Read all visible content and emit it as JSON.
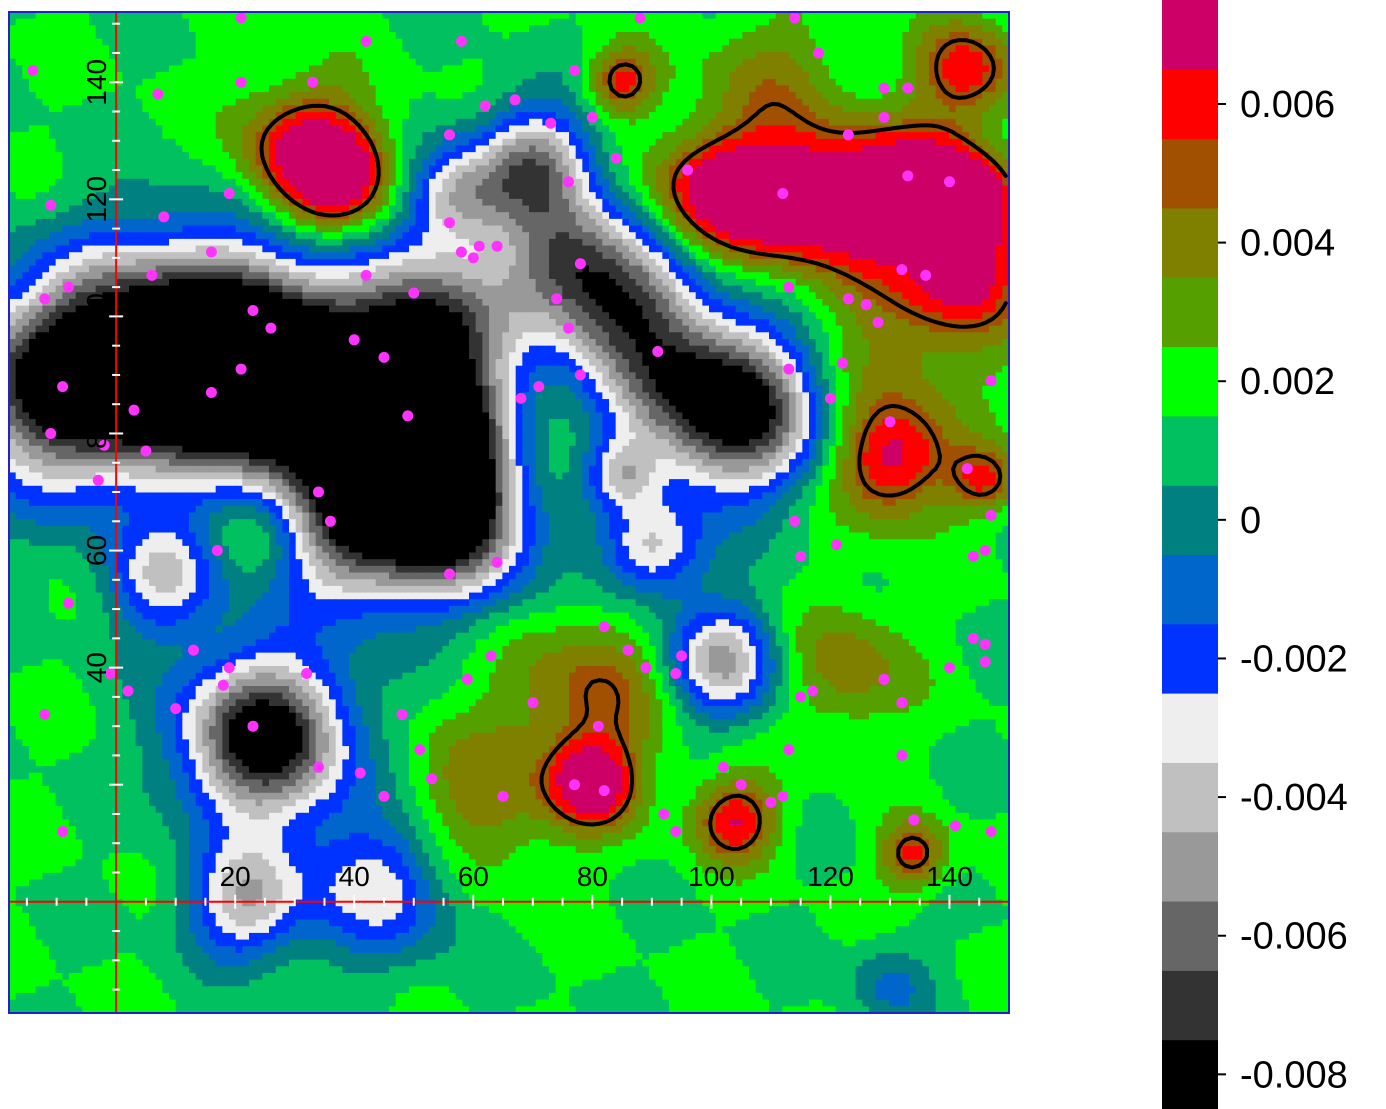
{
  "chart_data": {
    "type": "heatmap",
    "title": "",
    "xlabel": "",
    "ylabel": "",
    "xlim": [
      -18,
      150
    ],
    "ylim": [
      -19,
      152
    ],
    "x_ticks": [
      "20",
      "40",
      "60",
      "80",
      "100",
      "120",
      "140"
    ],
    "y_ticks": [
      "40",
      "60",
      "80",
      "100",
      "120",
      "140"
    ],
    "grid": false,
    "colorbar": {
      "levels": [
        {
          "value": -0.008,
          "color": "#000000"
        },
        {
          "value": -0.007,
          "color": "#333333"
        },
        {
          "value": -0.006,
          "color": "#666666"
        },
        {
          "value": -0.005,
          "color": "#999999"
        },
        {
          "value": -0.004,
          "color": "#c0c0c0"
        },
        {
          "value": -0.003,
          "color": "#eeeeee"
        },
        {
          "value": -0.002,
          "color": "#0033ff"
        },
        {
          "value": -0.001,
          "color": "#0066cc"
        },
        {
          "value": 0.0,
          "color": "#008080"
        },
        {
          "value": 0.001,
          "color": "#00c060"
        },
        {
          "value": 0.002,
          "color": "#00ff00"
        },
        {
          "value": 0.003,
          "color": "#55a000"
        },
        {
          "value": 0.004,
          "color": "#808000"
        },
        {
          "value": 0.005,
          "color": "#a05000"
        },
        {
          "value": 0.006,
          "color": "#ff0000"
        },
        {
          "value": 0.007,
          "color": "#cc0066"
        }
      ],
      "tick_labels": [
        "-0.008",
        "-0.006",
        "-0.004",
        "-0.002",
        "0",
        "0.002",
        "0.004",
        "0.006"
      ]
    },
    "contour_level": 0.005,
    "lows": [
      {
        "x": 25,
        "y": 28,
        "strength": 1.0,
        "r": 10
      },
      {
        "x": 27,
        "y": 90,
        "strength": 0.95,
        "r": 11
      },
      {
        "x": 15,
        "y": 96,
        "strength": 0.55,
        "r": 13
      },
      {
        "x": -10,
        "y": 88,
        "strength": 0.8,
        "r": 12
      },
      {
        "x": 5,
        "y": 92,
        "strength": 0.6,
        "r": 13
      },
      {
        "x": 43,
        "y": 81,
        "strength": 0.6,
        "r": 14
      },
      {
        "x": 53,
        "y": 78,
        "strength": 0.85,
        "r": 9
      },
      {
        "x": 53,
        "y": 98,
        "strength": 0.75,
        "r": 9
      },
      {
        "x": 40,
        "y": 62,
        "strength": 0.6,
        "r": 9
      },
      {
        "x": 58,
        "y": 64,
        "strength": 0.7,
        "r": 9
      },
      {
        "x": 57,
        "y": 120,
        "strength": 0.5,
        "r": 6
      },
      {
        "x": 70,
        "y": 126,
        "strength": 0.65,
        "r": 7
      },
      {
        "x": 75,
        "y": 110,
        "strength": 0.6,
        "r": 8
      },
      {
        "x": 85,
        "y": 103,
        "strength": 0.55,
        "r": 8
      },
      {
        "x": 92,
        "y": 90,
        "strength": 0.45,
        "r": 10
      },
      {
        "x": 105,
        "y": 84,
        "strength": 0.9,
        "r": 10
      },
      {
        "x": 90,
        "y": 60,
        "strength": 0.5,
        "r": 6
      },
      {
        "x": 102,
        "y": 41,
        "strength": 0.6,
        "r": 7
      },
      {
        "x": 22,
        "y": 0,
        "strength": 0.55,
        "r": 7
      },
      {
        "x": 45,
        "y": 3,
        "strength": 0.45,
        "r": 9
      },
      {
        "x": 85,
        "y": 73,
        "strength": 0.35,
        "r": 4
      },
      {
        "x": 8,
        "y": 55,
        "strength": 0.45,
        "r": 7
      },
      {
        "x": 130,
        "y": -14,
        "strength": 0.2,
        "r": 5
      }
    ],
    "highs": [
      {
        "x": 32,
        "y": 128,
        "strength": 0.9,
        "r": 8
      },
      {
        "x": 38,
        "y": 123,
        "strength": 0.7,
        "r": 6
      },
      {
        "x": 100,
        "y": 121,
        "strength": 0.85,
        "r": 7
      },
      {
        "x": 112,
        "y": 120,
        "strength": 0.85,
        "r": 8
      },
      {
        "x": 125,
        "y": 120,
        "strength": 0.85,
        "r": 8
      },
      {
        "x": 137,
        "y": 122,
        "strength": 0.95,
        "r": 7
      },
      {
        "x": 143,
        "y": 120,
        "strength": 0.9,
        "r": 5
      },
      {
        "x": 143,
        "y": 108,
        "strength": 0.85,
        "r": 7
      },
      {
        "x": 85,
        "y": 140,
        "strength": 0.7,
        "r": 4
      },
      {
        "x": 143,
        "y": 142,
        "strength": 0.75,
        "r": 6
      },
      {
        "x": 130,
        "y": 75,
        "strength": 0.85,
        "r": 7
      },
      {
        "x": 146,
        "y": 72,
        "strength": 0.6,
        "r": 4
      },
      {
        "x": 80,
        "y": 20,
        "strength": 0.95,
        "r": 5
      },
      {
        "x": 104,
        "y": 14,
        "strength": 0.8,
        "r": 5
      },
      {
        "x": 134,
        "y": 8,
        "strength": 0.7,
        "r": 4
      },
      {
        "x": 122,
        "y": 40,
        "strength": 0.45,
        "r": 8
      },
      {
        "x": 80,
        "y": 35,
        "strength": 0.55,
        "r": 10
      },
      {
        "x": 130,
        "y": 95,
        "strength": 0.4,
        "r": 12
      },
      {
        "x": 60,
        "y": 16,
        "strength": 0.45,
        "r": 10
      },
      {
        "x": 25,
        "y": 64,
        "strength": 0.4,
        "r": 6
      },
      {
        "x": 70,
        "y": 76,
        "strength": 0.3,
        "r": 6
      },
      {
        "x": 110,
        "y": 140,
        "strength": 0.35,
        "r": 9
      }
    ],
    "samples": [
      [
        -14,
        142
      ],
      [
        21,
        140
      ],
      [
        33,
        140
      ],
      [
        42,
        147
      ],
      [
        58,
        147
      ],
      [
        88,
        151
      ],
      [
        77,
        142
      ],
      [
        114,
        151
      ],
      [
        118,
        145
      ],
      [
        129,
        139
      ],
      [
        133,
        139
      ],
      [
        21,
        151
      ],
      [
        7,
        138
      ],
      [
        80,
        134
      ],
      [
        84,
        127
      ],
      [
        56,
        131
      ],
      [
        62,
        136
      ],
      [
        67,
        137
      ],
      [
        73,
        133
      ],
      [
        96,
        125
      ],
      [
        112,
        121
      ],
      [
        129,
        134
      ],
      [
        133,
        124
      ],
      [
        123,
        131
      ],
      [
        140,
        123
      ],
      [
        -11,
        119
      ],
      [
        76,
        123
      ],
      [
        19,
        121
      ],
      [
        8,
        117
      ],
      [
        16,
        111
      ],
      [
        42,
        107
      ],
      [
        50,
        104
      ],
      [
        56,
        116
      ],
      [
        58,
        111
      ],
      [
        60,
        110
      ],
      [
        61,
        112
      ],
      [
        64,
        112
      ],
      [
        78,
        109
      ],
      [
        -12,
        103
      ],
      [
        -8,
        105
      ],
      [
        6,
        107
      ],
      [
        23,
        101
      ],
      [
        26,
        98
      ],
      [
        40,
        96
      ],
      [
        74,
        103
      ],
      [
        113,
        105
      ],
      [
        123,
        103
      ],
      [
        126,
        102
      ],
      [
        128,
        99
      ],
      [
        132,
        108
      ],
      [
        136,
        107
      ],
      [
        -9,
        88
      ],
      [
        3,
        84
      ],
      [
        16,
        87
      ],
      [
        21,
        91
      ],
      [
        45,
        93
      ],
      [
        49,
        83
      ],
      [
        68,
        86
      ],
      [
        71,
        88
      ],
      [
        76,
        98
      ],
      [
        78,
        90
      ],
      [
        91,
        94
      ],
      [
        113,
        91
      ],
      [
        120,
        86
      ],
      [
        122,
        92
      ],
      [
        -11,
        80
      ],
      [
        -2,
        78
      ],
      [
        5,
        77
      ],
      [
        130,
        82
      ],
      [
        143,
        74
      ],
      [
        147,
        89
      ],
      [
        -3,
        72
      ],
      [
        17,
        60
      ],
      [
        34,
        70
      ],
      [
        36,
        65
      ],
      [
        56,
        56
      ],
      [
        64,
        58
      ],
      [
        114,
        65
      ],
      [
        115,
        59
      ],
      [
        121,
        61
      ],
      [
        144,
        59
      ],
      [
        146,
        60
      ],
      [
        147,
        66
      ],
      [
        -8,
        51
      ],
      [
        13,
        43
      ],
      [
        19,
        40
      ],
      [
        32,
        39
      ],
      [
        48,
        32
      ],
      [
        59,
        38
      ],
      [
        70,
        34
      ],
      [
        81,
        30
      ],
      [
        86,
        43
      ],
      [
        89,
        40
      ],
      [
        95,
        42
      ],
      [
        115,
        35
      ],
      [
        117,
        36
      ],
      [
        129,
        38
      ],
      [
        146,
        41
      ],
      [
        146,
        44
      ],
      [
        -12,
        32
      ],
      [
        23,
        30
      ],
      [
        34,
        23
      ],
      [
        41,
        22
      ],
      [
        51,
        26
      ],
      [
        65,
        18
      ],
      [
        77,
        20
      ],
      [
        82,
        19
      ],
      [
        92,
        15
      ],
      [
        105,
        20
      ],
      [
        113,
        26
      ],
      [
        132,
        34
      ],
      [
        141,
        13
      ],
      [
        147,
        12
      ],
      [
        -9,
        12
      ],
      [
        45,
        18
      ],
      [
        53,
        21
      ],
      [
        94,
        12
      ],
      [
        112,
        18
      ],
      [
        132,
        25
      ],
      [
        -1,
        39
      ],
      [
        2,
        36
      ],
      [
        10,
        33
      ],
      [
        18,
        37
      ],
      [
        63,
        42
      ],
      [
        82,
        47
      ],
      [
        94,
        39
      ],
      [
        102,
        23
      ],
      [
        110,
        17
      ],
      [
        134,
        14
      ],
      [
        140,
        40
      ],
      [
        144,
        45
      ]
    ]
  }
}
